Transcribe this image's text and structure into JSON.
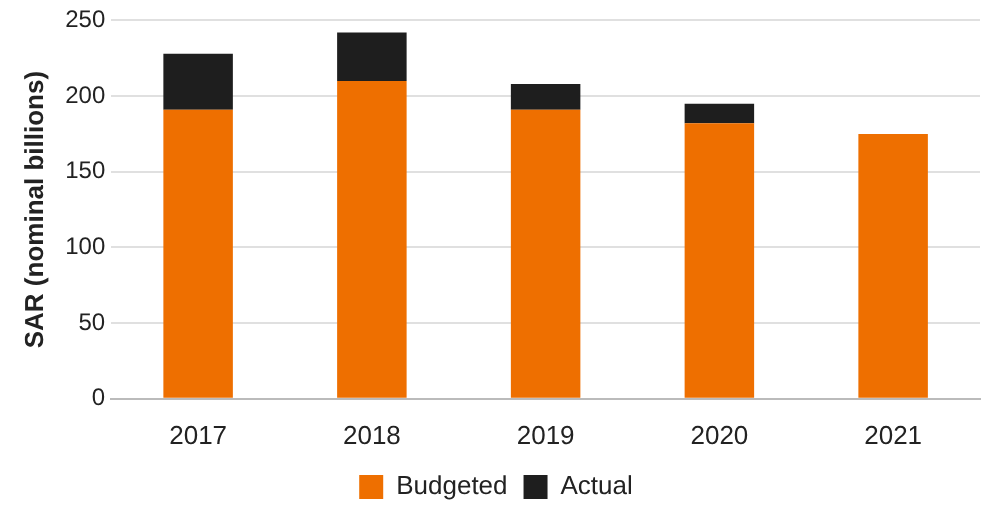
{
  "chart_data": {
    "type": "bar",
    "stacked": true,
    "categories": [
      "2017",
      "2018",
      "2019",
      "2020",
      "2021"
    ],
    "series": [
      {
        "name": "Budgeted",
        "color": "#ee6f00",
        "values": [
          191,
          210,
          191,
          182,
          175
        ]
      },
      {
        "name": "Actual",
        "color": "#1e1e1e",
        "values": [
          37,
          32,
          17,
          13,
          null
        ]
      }
    ],
    "ylabel": "SAR (nominal billions)",
    "ylim": [
      0,
      250
    ],
    "yticks": [
      0,
      50,
      100,
      150,
      200,
      250
    ],
    "grid": "y",
    "legend": "bottom"
  }
}
